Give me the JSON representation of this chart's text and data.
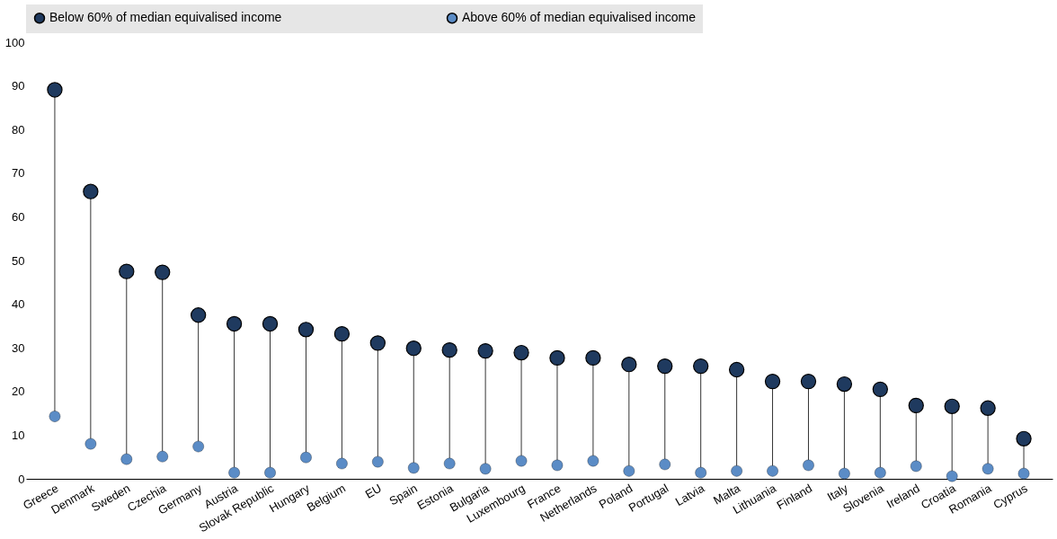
{
  "chart_data": {
    "type": "scatter",
    "categories": [
      "Greece",
      "Denmark",
      "Sweden",
      "Czechia",
      "Germany",
      "Austria",
      "Slovak Republic",
      "Hungary",
      "Belgium",
      "EU",
      "Spain",
      "Estonia",
      "Bulgaria",
      "Luxembourg",
      "France",
      "Netherlands",
      "Poland",
      "Portugal",
      "Latvia",
      "Malta",
      "Lithuania",
      "Finland",
      "Italy",
      "Slovenia",
      "Ireland",
      "Croatia",
      "Romania",
      "Cyprus"
    ],
    "series": [
      {
        "name": "Below 60% of median equivalised income",
        "color": "#1f3a5f",
        "values": [
          89.1,
          65.8,
          47.5,
          47.3,
          37.5,
          35.5,
          35.5,
          34.2,
          33.2,
          31.1,
          29.9,
          29.5,
          29.3,
          28.9,
          27.7,
          27.7,
          26.2,
          25.8,
          25.8,
          25.0,
          22.3,
          22.3,
          21.7,
          20.5,
          16.8,
          16.6,
          16.2,
          9.2
        ]
      },
      {
        "name": "Above 60% of median equivalised income",
        "color": "#5b8cc6",
        "values": [
          14.3,
          8.0,
          4.5,
          5.1,
          7.4,
          1.4,
          1.4,
          4.9,
          3.5,
          3.9,
          2.5,
          3.5,
          2.3,
          4.1,
          3.1,
          4.1,
          1.8,
          3.3,
          1.4,
          1.8,
          1.8,
          3.1,
          1.2,
          1.4,
          2.9,
          0.6,
          2.3,
          1.2
        ]
      }
    ],
    "ylim": [
      0,
      100
    ],
    "yticks": [
      0,
      10,
      20,
      30,
      40,
      50,
      60,
      70,
      80,
      90,
      100
    ],
    "legend": "top",
    "marker": "circle"
  }
}
